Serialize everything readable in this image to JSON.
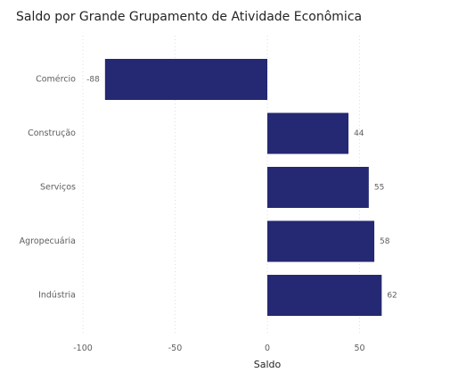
{
  "chart_data": {
    "type": "bar",
    "orientation": "horizontal",
    "title": "Saldo por Grande Grupamento de Atividade Econômica",
    "xlabel": "Saldo",
    "ylabel": "",
    "categories": [
      "Comércio",
      "Construção",
      "Serviços",
      "Agropecuária",
      "Indústria"
    ],
    "values": [
      -88,
      44,
      55,
      58,
      62
    ],
    "data_labels": [
      "-88",
      "44",
      "55",
      "58",
      "62"
    ],
    "x_ticks": [
      -100,
      -50,
      0,
      50
    ],
    "x_tick_labels": [
      "-100",
      "-50",
      "0",
      "50"
    ],
    "xlim": [
      -100,
      62
    ],
    "grid": true,
    "bar_color": "#252872"
  }
}
